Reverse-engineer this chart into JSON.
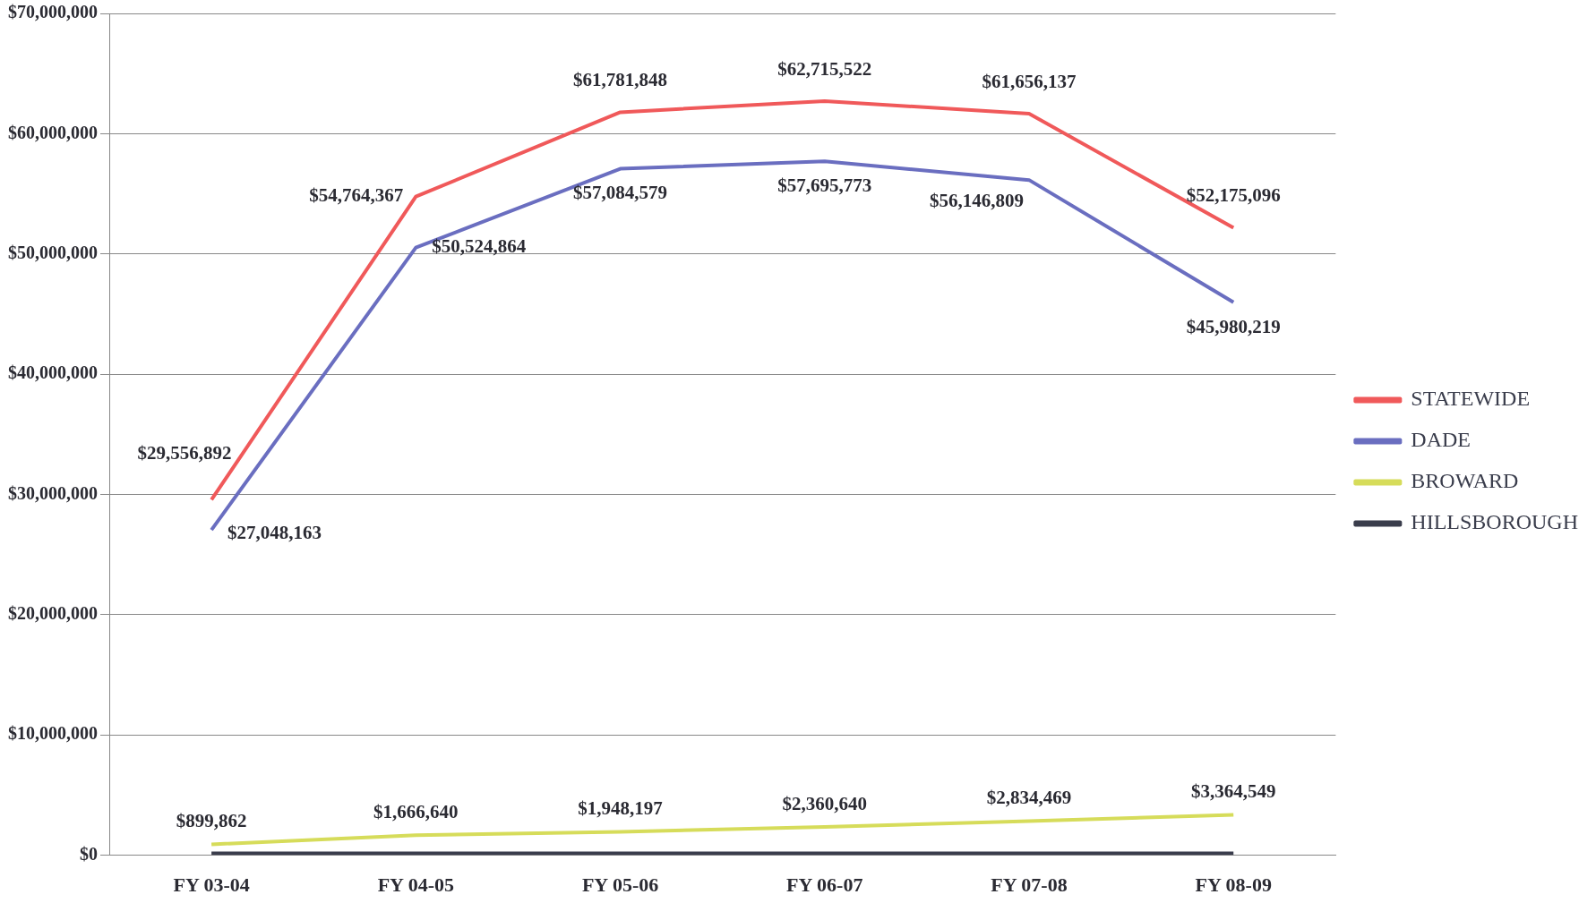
{
  "chart_data": {
    "type": "line",
    "categories": [
      "FY 03-04",
      "FY 04-05",
      "FY 05-06",
      "FY 06-07",
      "FY 07-08",
      "FY 08-09"
    ],
    "series": [
      {
        "name": "STATEWIDE",
        "color": "#f0595a",
        "values": [
          29556892,
          54764367,
          61781848,
          62715522,
          61656137,
          52175096
        ],
        "value_labels": [
          "$29,556,892",
          "$54,764,367",
          "$61,781,848",
          "$62,715,522",
          "$61,656,137",
          "$52,175,096"
        ]
      },
      {
        "name": "DADE",
        "color": "#6a6ec0",
        "values": [
          27048163,
          50524864,
          57084579,
          57695773,
          56146809,
          45980219
        ],
        "value_labels": [
          "$27,048,163",
          "$50,524,864",
          "$57,084,579",
          "$57,695,773",
          "$56,146,809",
          "$45,980,219"
        ]
      },
      {
        "name": "BROWARD",
        "color": "#d6dc5a",
        "values": [
          899862,
          1666640,
          1948197,
          2360640,
          2834469,
          3364549
        ],
        "value_labels": [
          "$899,862",
          "$1,666,640",
          "$1,948,197",
          "$2,360,640",
          "$2,834,469",
          "$3,364,549"
        ]
      },
      {
        "name": "HILLSBOROUGH",
        "color": "#3a3d4c",
        "values": [
          150000,
          150000,
          150000,
          150000,
          150000,
          150000
        ]
      }
    ],
    "ylim": [
      0,
      70000000
    ],
    "yticks": [
      {
        "value": 0,
        "label": "$0"
      },
      {
        "value": 10000000,
        "label": "$10,000,000"
      },
      {
        "value": 20000000,
        "label": "$20,000,000"
      },
      {
        "value": 30000000,
        "label": "$30,000,000"
      },
      {
        "value": 40000000,
        "label": "$40,000,000"
      },
      {
        "value": 50000000,
        "label": "$50,000,000"
      },
      {
        "value": 60000000,
        "label": "$60,000,000"
      },
      {
        "value": 70000000,
        "label": "$70,000,000"
      }
    ],
    "grid": "y",
    "legend": "right",
    "marker": "none",
    "line_style": "solid"
  }
}
